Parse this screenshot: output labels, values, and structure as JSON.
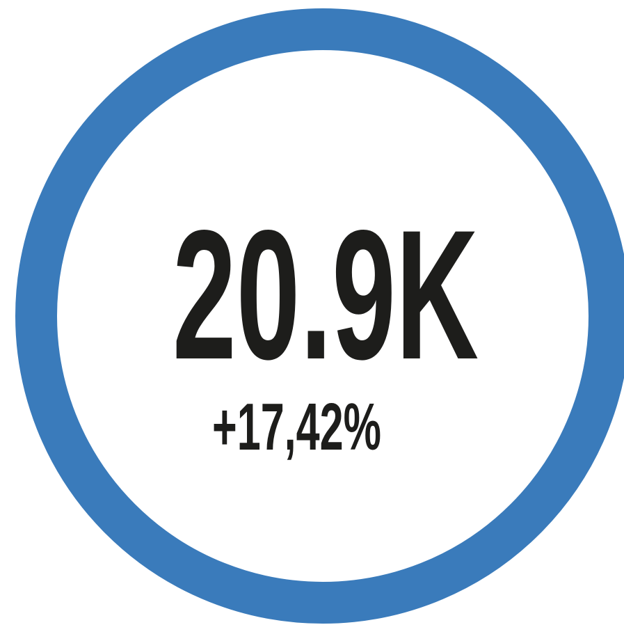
{
  "metric": {
    "value": "20.9K",
    "change": "+17,42%"
  }
}
